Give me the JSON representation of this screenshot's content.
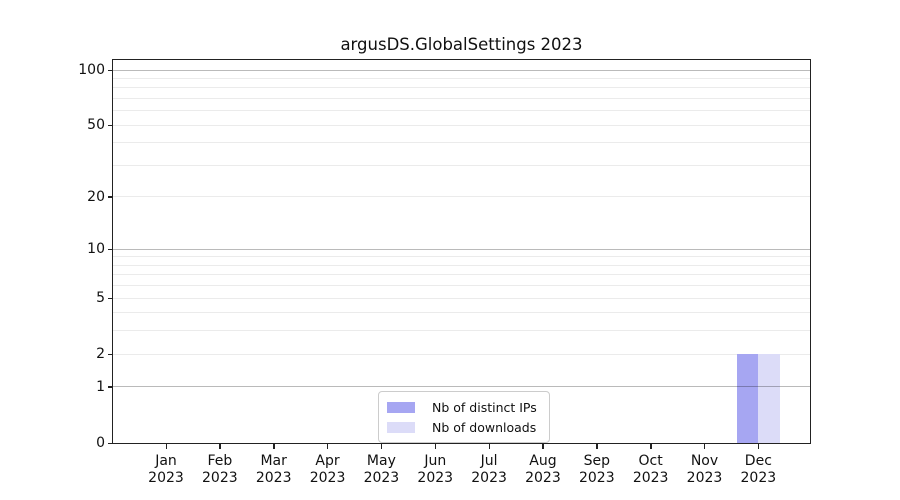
{
  "chart": {
    "title": "argusDS.GlobalSettings 2023"
  },
  "legend": {
    "items": [
      {
        "label": "Nb of distinct IPs",
        "color": "#a6a6f2"
      },
      {
        "label": "Nb of downloads",
        "color": "#dcdcf8"
      }
    ]
  },
  "axes": {
    "y_tick_labels": [
      "0",
      "1",
      "2",
      "5",
      "10",
      "20",
      "50",
      "100"
    ],
    "x_tick_labels": [
      {
        "month": "Jan",
        "year": "2023"
      },
      {
        "month": "Feb",
        "year": "2023"
      },
      {
        "month": "Mar",
        "year": "2023"
      },
      {
        "month": "Apr",
        "year": "2023"
      },
      {
        "month": "May",
        "year": "2023"
      },
      {
        "month": "Jun",
        "year": "2023"
      },
      {
        "month": "Jul",
        "year": "2023"
      },
      {
        "month": "Aug",
        "year": "2023"
      },
      {
        "month": "Sep",
        "year": "2023"
      },
      {
        "month": "Oct",
        "year": "2023"
      },
      {
        "month": "Nov",
        "year": "2023"
      },
      {
        "month": "Dec",
        "year": "2023"
      }
    ]
  },
  "colors": {
    "bar_distinct_ips": "#a6a6f2",
    "bar_downloads": "#dcdcf8",
    "grid_major": "rgba(0,0,0,0.27)",
    "grid_minor": "rgba(0,0,0,0.08)",
    "spine": "#222222",
    "text": "#111111"
  },
  "chart_data": {
    "type": "bar",
    "title": "argusDS.GlobalSettings 2023",
    "xlabel": "",
    "ylabel": "",
    "categories": [
      "Jan 2023",
      "Feb 2023",
      "Mar 2023",
      "Apr 2023",
      "May 2023",
      "Jun 2023",
      "Jul 2023",
      "Aug 2023",
      "Sep 2023",
      "Oct 2023",
      "Nov 2023",
      "Dec 2023"
    ],
    "series": [
      {
        "name": "Nb of distinct IPs",
        "color": "#a6a6f2",
        "values": [
          0,
          0,
          0,
          0,
          0,
          0,
          0,
          0,
          0,
          0,
          0,
          2
        ]
      },
      {
        "name": "Nb of downloads",
        "color": "#dcdcf8",
        "values": [
          0,
          0,
          0,
          0,
          0,
          0,
          0,
          0,
          0,
          0,
          0,
          2
        ]
      }
    ],
    "y_scale": "log1p",
    "y_ticks": [
      0,
      1,
      2,
      5,
      10,
      20,
      50,
      100
    ],
    "y_grid_major": [
      1,
      10,
      100
    ],
    "y_grid_minor": [
      2,
      3,
      4,
      5,
      6,
      7,
      8,
      9,
      20,
      30,
      40,
      50,
      60,
      70,
      80,
      90
    ],
    "ylim": [
      0,
      113
    ],
    "grid": true,
    "legend_position": "lower center"
  }
}
